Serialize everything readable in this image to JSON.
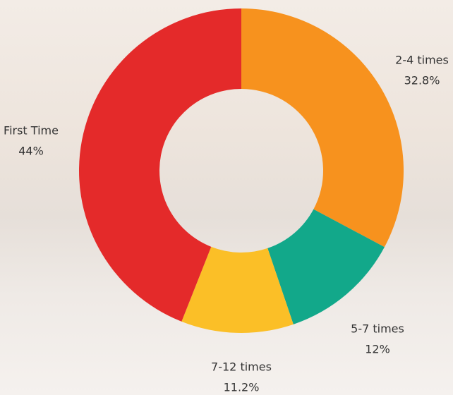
{
  "chart_data": {
    "type": "pie",
    "categories": [
      "2-4 times",
      "5-7 times",
      "7-12 times",
      "First Time"
    ],
    "values": [
      32.8,
      12,
      11.2,
      44
    ],
    "value_labels": [
      "32.8%",
      "12%",
      "11.2%",
      "44%"
    ],
    "colors": [
      "#f7921e",
      "#12a88a",
      "#fbbf27",
      "#e42a2a"
    ]
  }
}
